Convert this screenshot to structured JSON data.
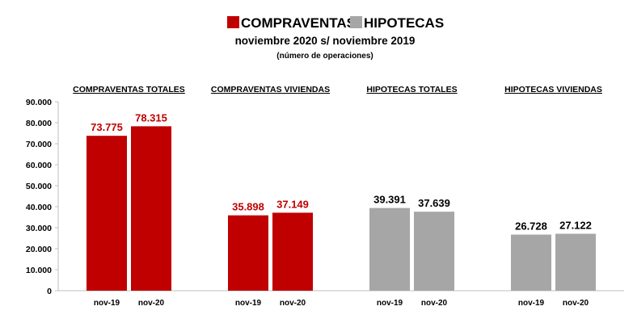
{
  "legend": [
    {
      "label": "COMPRAVENTAS",
      "color": "#c00000"
    },
    {
      "label": "HIPOTECAS",
      "color": "#a6a6a6"
    }
  ],
  "subtitle": "noviembre 2020 s/ noviembre 2019",
  "note": "(número de operaciones)",
  "chart_data": {
    "type": "bar",
    "title": "",
    "xlabel": "",
    "ylabel": "",
    "ylim": [
      0,
      90000
    ],
    "yticks": [
      0,
      10000,
      20000,
      30000,
      40000,
      50000,
      60000,
      70000,
      80000,
      90000
    ],
    "ytick_labels": [
      "0",
      "10.000",
      "20.000",
      "30.000",
      "40.000",
      "50.000",
      "60.000",
      "70.000",
      "80.000",
      "90.000"
    ],
    "grid": false,
    "groups": [
      {
        "name": "COMPRAVENTAS TOTALES",
        "color": "#c00000",
        "label_color": "#c00000",
        "categories": [
          "nov-19",
          "nov-20"
        ],
        "values": [
          73775,
          78315
        ],
        "value_labels": [
          "73.775",
          "78.315"
        ]
      },
      {
        "name": "COMPRAVENTAS VIVIENDAS",
        "color": "#c00000",
        "label_color": "#c00000",
        "categories": [
          "nov-19",
          "nov-20"
        ],
        "values": [
          35898,
          37149
        ],
        "value_labels": [
          "35.898",
          "37.149"
        ]
      },
      {
        "name": "HIPOTECAS TOTALES",
        "color": "#a6a6a6",
        "label_color": "#000000",
        "categories": [
          "nov-19",
          "nov-20"
        ],
        "values": [
          39391,
          37639
        ],
        "value_labels": [
          "39.391",
          "37.639"
        ]
      },
      {
        "name": "HIPOTECAS VIVIENDAS",
        "color": "#a6a6a6",
        "label_color": "#000000",
        "categories": [
          "nov-19",
          "nov-20"
        ],
        "values": [
          26728,
          27122
        ],
        "value_labels": [
          "26.728",
          "27.122"
        ]
      }
    ]
  }
}
